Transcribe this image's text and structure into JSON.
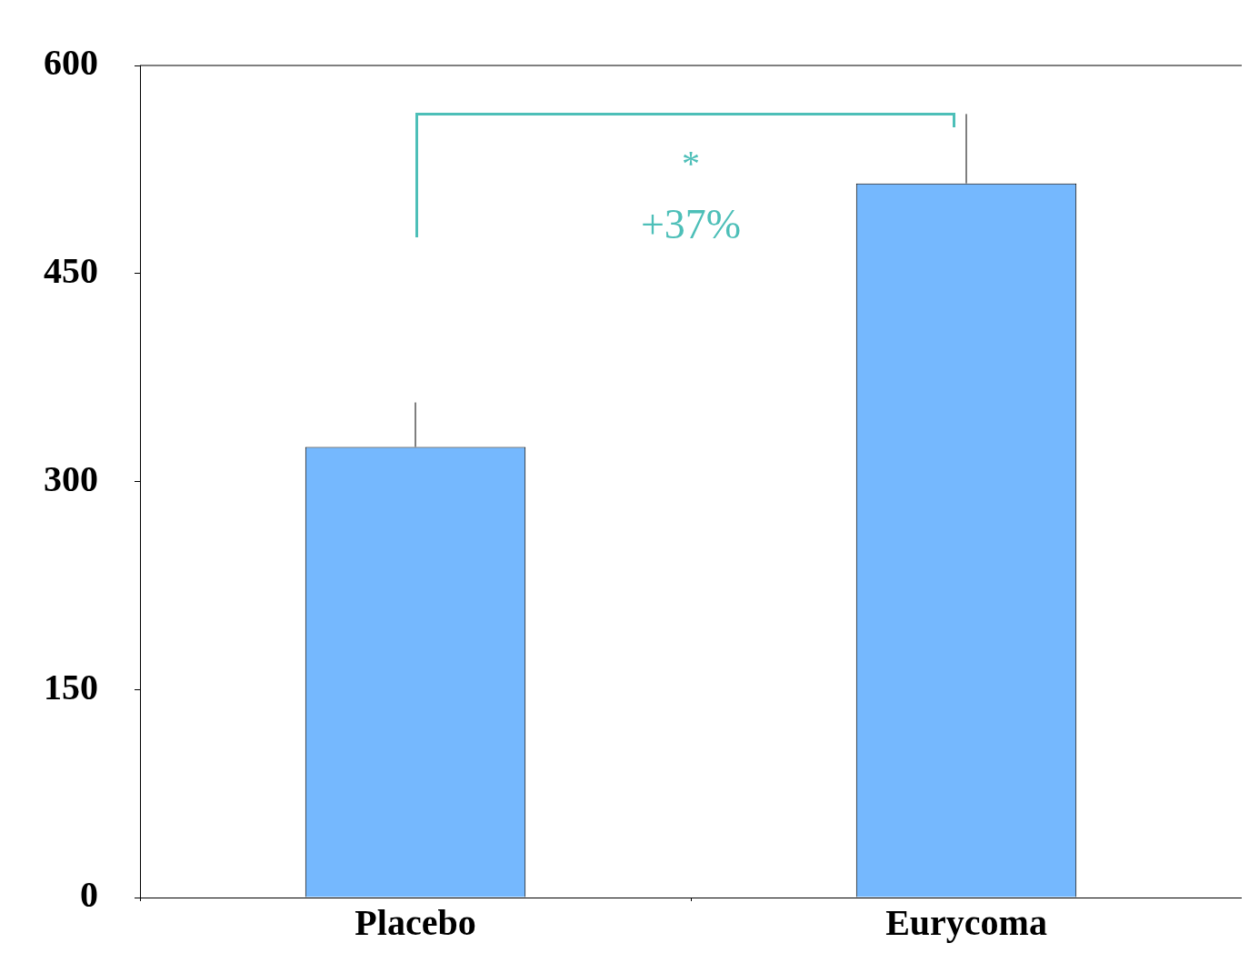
{
  "chart_data": {
    "type": "bar",
    "categories": [
      "Placebo",
      "Eurycoma"
    ],
    "values": [
      325,
      515
    ],
    "errors": [
      32,
      50
    ],
    "color": "#75b8fe",
    "ylim": [
      0,
      600
    ],
    "yticks": [
      0,
      150,
      300,
      450,
      600
    ],
    "grid": false,
    "legend": false,
    "annotations": [
      "*",
      "+37%"
    ]
  }
}
